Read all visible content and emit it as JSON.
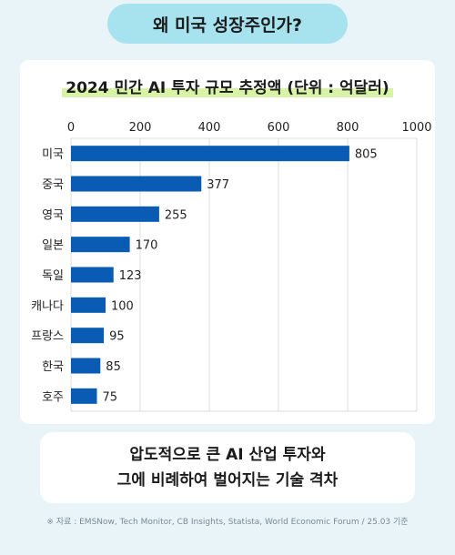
{
  "header": {
    "title": "왜 미국 성장주인가?"
  },
  "chart_data": {
    "type": "bar",
    "orientation": "horizontal",
    "title": "2024 민간 AI 투자 규모 추정액 (단위 : 억달러)",
    "categories": [
      "미국",
      "중국",
      "영국",
      "일본",
      "독일",
      "캐나다",
      "프랑스",
      "한국",
      "호주"
    ],
    "values": [
      805,
      377,
      255,
      170,
      123,
      100,
      95,
      85,
      75
    ],
    "xlim": [
      0,
      1000
    ],
    "xticks": [
      0,
      200,
      400,
      600,
      800,
      1000
    ],
    "bar_color": "#0a5bb3",
    "grid": true
  },
  "summary": {
    "line1": "압도적으로 큰 AI 산업 투자와",
    "line2": "그에 비례하여 벌어지는 기술 격차"
  },
  "source": "※ 자료 : EMSNow, Tech Monitor, CB Insights, Statista, World Economic Forum / 25.03 기준"
}
